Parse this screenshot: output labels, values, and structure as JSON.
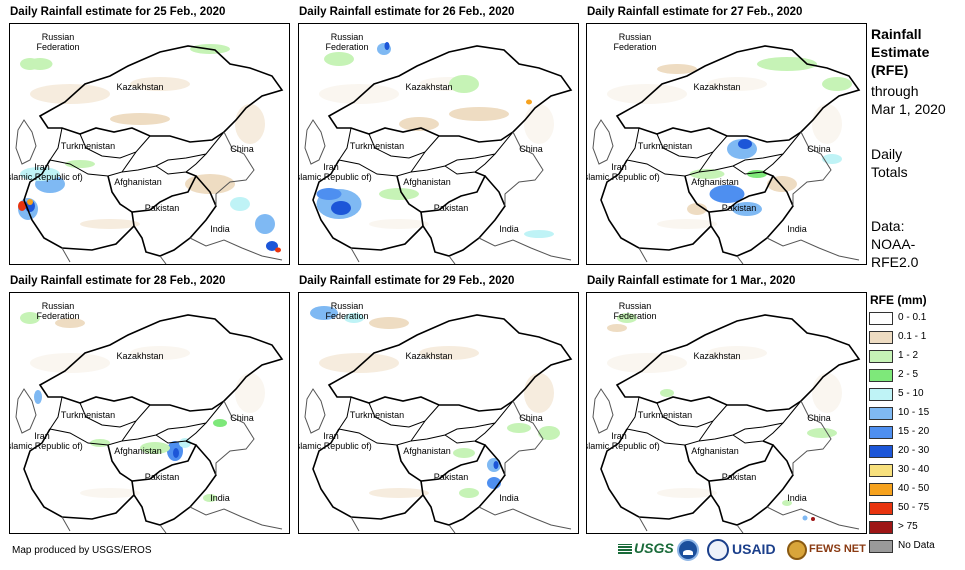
{
  "panels": [
    {
      "title": "Daily Rainfall estimate for 25 Feb., 2020"
    },
    {
      "title": "Daily Rainfall estimate for 26 Feb., 2020"
    },
    {
      "title": "Daily Rainfall estimate for 27 Feb., 2020"
    },
    {
      "title": "Daily Rainfall estimate for 28 Feb., 2020"
    },
    {
      "title": "Daily Rainfall estimate for 29 Feb., 2020"
    },
    {
      "title": "Daily Rainfall estimate for 1 Mar., 2020"
    }
  ],
  "map_labels": {
    "russia_l1": "Russian",
    "russia_l2": "Federation",
    "kazakhstan": "Kazakhstan",
    "turkmenistan": "Turkmenistan",
    "iran_l1": "Iran",
    "iran_l2": "(Islamic Republic of)",
    "afghanistan": "Afghanistan",
    "pakistan": "Pakistan",
    "china": "China",
    "india": "India"
  },
  "side_text": {
    "heading_l1": "Rainfall",
    "heading_l2": "Estimate",
    "heading_l3": "(RFE)",
    "through_l1": "through",
    "through_l2": "Mar 1, 2020",
    "totals_l1": "Daily",
    "totals_l2": "Totals",
    "data_l1": "Data:",
    "data_l2": "NOAA-",
    "data_l3": "RFE2.0"
  },
  "legend": {
    "title": "RFE (mm)",
    "items": [
      {
        "label": "0 - 0.1",
        "color": "#ffffff"
      },
      {
        "label": "0.1 - 1",
        "color": "#eedcc2"
      },
      {
        "label": "1 - 2",
        "color": "#c6f3b6"
      },
      {
        "label": "2 - 5",
        "color": "#7ee87a"
      },
      {
        "label": "5 - 10",
        "color": "#bff3f6"
      },
      {
        "label": "10 - 15",
        "color": "#7fb9f3"
      },
      {
        "label": "15 - 20",
        "color": "#4e8ff0"
      },
      {
        "label": "20 - 30",
        "color": "#1c56d8"
      },
      {
        "label": "30 - 40",
        "color": "#f7e07d"
      },
      {
        "label": "40 - 50",
        "color": "#f6a21e"
      },
      {
        "label": "50 - 75",
        "color": "#e8340f"
      },
      {
        "label": "> 75",
        "color": "#9e1616"
      },
      {
        "label": "No Data",
        "color": "#9a9a9a"
      }
    ]
  },
  "footer": {
    "credit": "Map produced by USGS/EROS",
    "logos": [
      "USGS",
      "NOAA",
      "USAID",
      "FEWS NET"
    ]
  }
}
